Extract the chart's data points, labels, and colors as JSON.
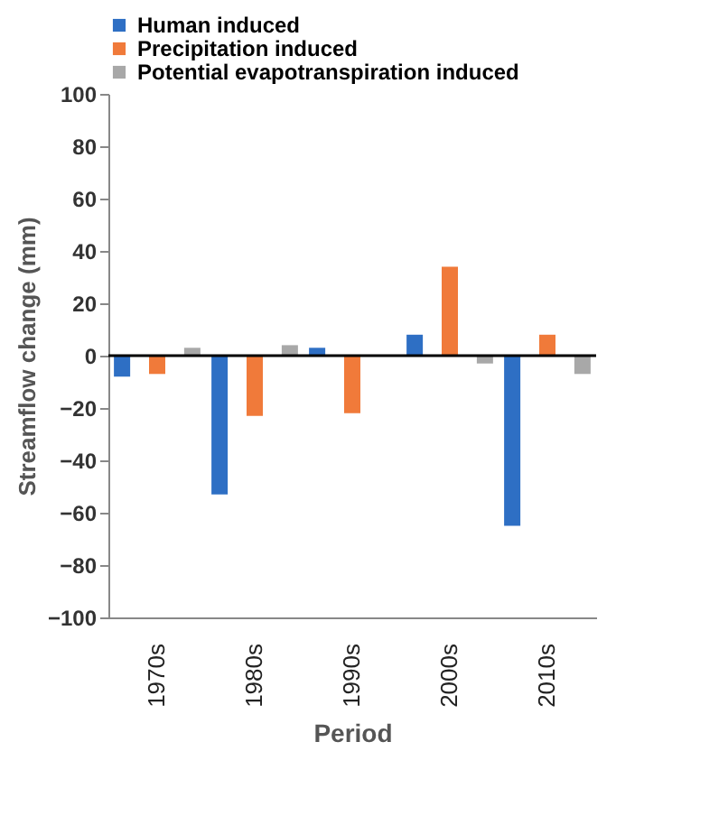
{
  "chart_data": {
    "type": "bar",
    "xlabel": "Period",
    "ylabel": "Streamflow change (mm)",
    "categories": [
      "1970s",
      "1980s",
      "1990s",
      "2000s",
      "2010s"
    ],
    "series": [
      {
        "name": "Human induced",
        "color": "#2e6fc4",
        "values": [
          -8,
          -53,
          3,
          8,
          -65
        ]
      },
      {
        "name": "Precipitation induced",
        "color": "#f07a3a",
        "values": [
          -7,
          -23,
          -22,
          34,
          8
        ]
      },
      {
        "name": "Potential evapotranspiration induced",
        "color": "#a8a8a8",
        "values": [
          3,
          4,
          null,
          -3,
          -7
        ]
      }
    ],
    "ylim": [
      -100,
      100
    ],
    "yticks": [
      -100,
      -80,
      -60,
      -40,
      -20,
      0,
      20,
      40,
      60,
      80,
      100
    ],
    "ref_lines": [
      {
        "axis": "y",
        "value": 0,
        "color": "#000000"
      }
    ],
    "grid": false,
    "legend": "top left"
  }
}
